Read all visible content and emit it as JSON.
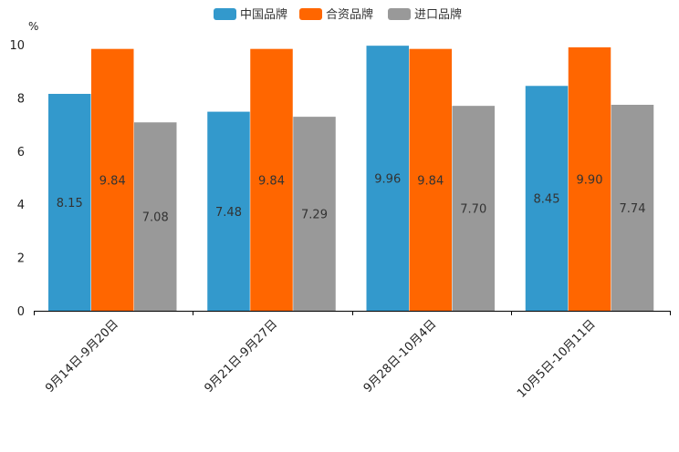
{
  "chart_data": {
    "type": "bar",
    "title": "",
    "xlabel": "",
    "ylabel": "%",
    "ylim": [
      0,
      10
    ],
    "yticks": [
      0,
      2,
      4,
      6,
      8,
      10
    ],
    "grid": false,
    "legend_position": "top-center",
    "categories": [
      "9月14日-9月20日",
      "9月21日-9月27日",
      "9月28日-10月4日",
      "10月5日-10月11日"
    ],
    "series": [
      {
        "name": "中国品牌",
        "color": "#3399cc",
        "values": [
          8.15,
          7.48,
          9.96,
          8.45
        ],
        "labels": [
          "8.15",
          "7.48",
          "9.96",
          "8.45"
        ]
      },
      {
        "name": "合资品牌",
        "color": "#ff6600",
        "values": [
          9.84,
          9.84,
          9.84,
          9.9
        ],
        "labels": [
          "9.84",
          "9.84",
          "9.84",
          "9.90"
        ]
      },
      {
        "name": "进口品牌",
        "color": "#999999",
        "values": [
          7.08,
          7.29,
          7.7,
          7.74
        ],
        "labels": [
          "7.08",
          "7.29",
          "7.70",
          "7.74"
        ]
      }
    ]
  }
}
